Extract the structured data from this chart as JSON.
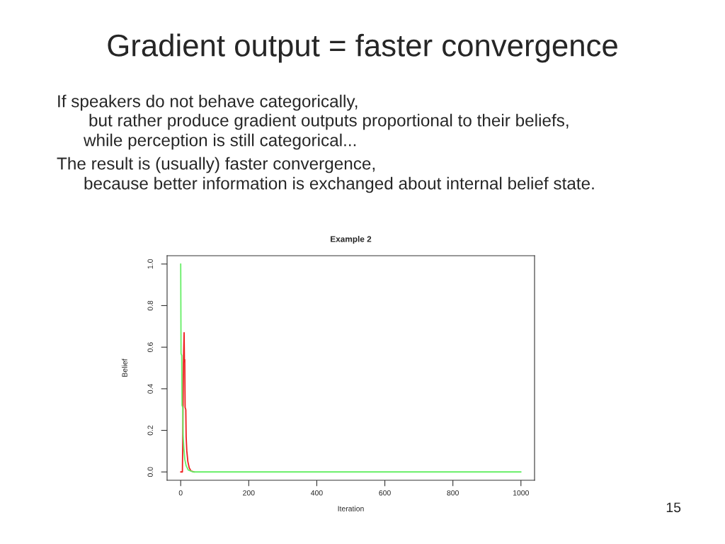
{
  "chart_data": {
    "type": "line",
    "title": "Gradient output = faster convergence",
    "subtitle": "Example 2",
    "xlabel": "Iteration",
    "ylabel": "Belief",
    "annotations": [
      "If speakers do not behave categorically,",
      "but rather produce gradient outputs proportional to their beliefs,",
      "while perception is still categorical...",
      "The result is (usually) faster convergence,",
      "because better information is exchanged about internal belief state.",
      "15"
    ],
    "series": [
      {
        "color": "#ee2020",
        "x": [
          0,
          5,
          6,
          8,
          10,
          11,
          12,
          13,
          15,
          16,
          18,
          21,
          25,
          30,
          40
        ],
        "values": [
          0,
          0,
          0.15,
          0.52,
          0.67,
          0.53,
          0.54,
          0.31,
          0.3,
          0.17,
          0.1,
          0.05,
          0.02,
          0.005,
          0
        ]
      },
      {
        "color": "#66ee66",
        "x": [
          0,
          1,
          3,
          4,
          6,
          7,
          9,
          12,
          16,
          22,
          36,
          1000
        ],
        "values": [
          1.0,
          0.57,
          0.56,
          0.32,
          0.31,
          0.18,
          0.12,
          0.06,
          0.03,
          0.01,
          0,
          0
        ]
      }
    ],
    "xlim": [
      -40,
      1040
    ],
    "ylim": [
      -0.04,
      1.04
    ],
    "xticks": [
      0,
      200,
      400,
      600,
      800,
      1000
    ],
    "yticks": [
      {
        "value": 0,
        "label": "0.0"
      },
      0.2,
      0.4,
      0.6,
      0.8,
      {
        "value": 1,
        "label": "1.0"
      }
    ]
  }
}
